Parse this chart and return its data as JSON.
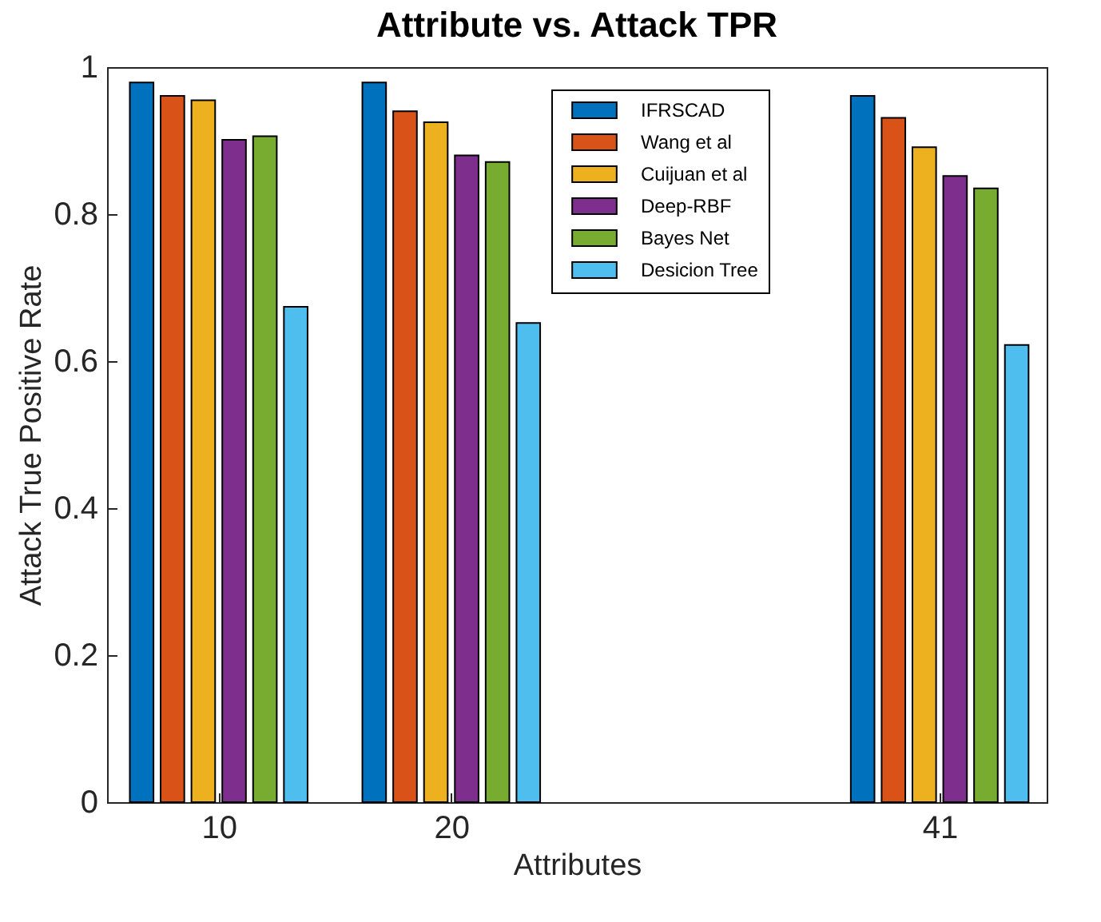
{
  "chart_data": {
    "type": "bar",
    "title": "Attribute vs. Attack TPR",
    "xlabel": "Attributes",
    "ylabel": "Attack True Positive Rate",
    "x": [
      10,
      20,
      41
    ],
    "series": [
      {
        "name": "IFRSCAD",
        "color": "#0072bd",
        "values": [
          0.979,
          0.979,
          0.961
        ]
      },
      {
        "name": "Wang et al",
        "color": "#d95319",
        "values": [
          0.961,
          0.94,
          0.931
        ]
      },
      {
        "name": "Cuijuan et al",
        "color": "#edb120",
        "values": [
          0.955,
          0.925,
          0.891
        ]
      },
      {
        "name": "Deep-RBF",
        "color": "#7e2f8e",
        "values": [
          0.901,
          0.88,
          0.852
        ]
      },
      {
        "name": "Bayes Net",
        "color": "#77ac30",
        "values": [
          0.906,
          0.871,
          0.835
        ]
      },
      {
        "name": "Desicion Tree",
        "color": "#4dbeee",
        "values": [
          0.674,
          0.652,
          0.622
        ]
      }
    ],
    "xlim": [
      5.2,
      45.6
    ],
    "xticks": [
      10,
      20,
      41
    ],
    "ylim": [
      0,
      1
    ],
    "yticks": [
      0,
      0.2,
      0.4,
      0.6,
      0.8,
      1
    ],
    "grid": false,
    "legend": "top right"
  }
}
